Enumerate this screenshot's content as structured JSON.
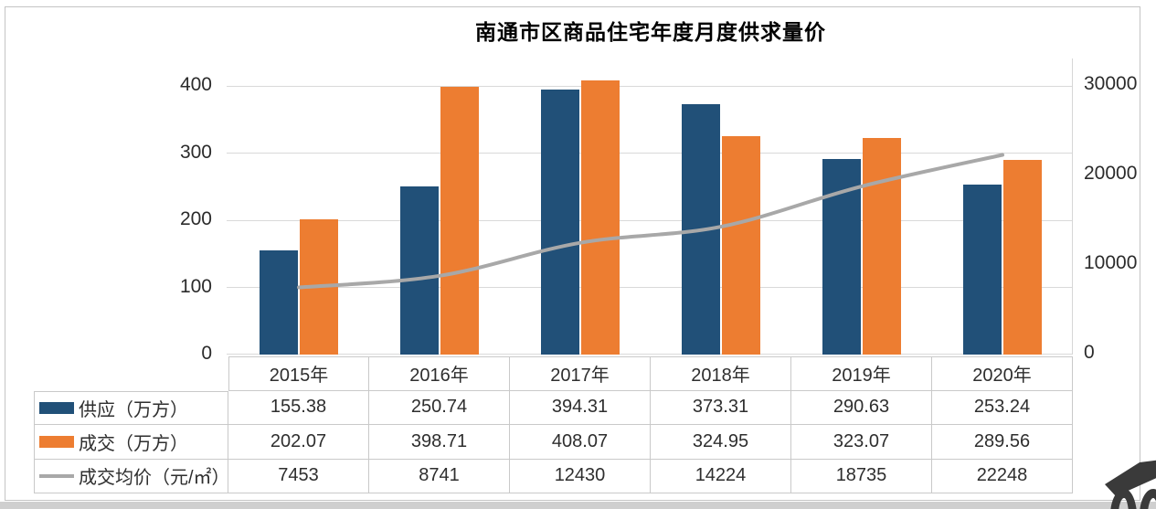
{
  "title": "南通市区商品住宅年度月度供求量价",
  "chart_data": {
    "type": "bar",
    "subtype": "grouped bars with smoothed line on secondary axis, data table below",
    "title": "南通市区商品住宅年度月度供求量价",
    "categories": [
      "2015年",
      "2016年",
      "2017年",
      "2018年",
      "2019年",
      "2020年"
    ],
    "series": [
      {
        "name": "供应（万方）",
        "type": "bar",
        "axis": "left",
        "color": "#215078",
        "values": [
          155.38,
          250.74,
          394.31,
          373.31,
          290.63,
          253.24
        ],
        "values_display": [
          "155.38",
          "250.74",
          "394.31",
          "373.31",
          "290.63",
          "253.24"
        ]
      },
      {
        "name": "成交（万方）",
        "type": "bar",
        "axis": "left",
        "color": "#ED7D31",
        "values": [
          202.07,
          398.71,
          408.07,
          324.95,
          323.07,
          289.56
        ],
        "values_display": [
          "202.07",
          "398.71",
          "408.07",
          "324.95",
          "323.07",
          "289.56"
        ]
      },
      {
        "name": "成交均价（元/㎡）",
        "type": "line",
        "axis": "right",
        "color": "#A8A8A8",
        "values": [
          7453,
          8741,
          12430,
          14224,
          18735,
          22248
        ],
        "values_display": [
          "7453",
          "8741",
          "12430",
          "14224",
          "18735",
          "22248"
        ]
      }
    ],
    "left_axis": {
      "ticks": [
        0,
        100,
        200,
        300,
        400
      ],
      "tick_labels": [
        "400",
        "300",
        "200",
        "100",
        "0"
      ],
      "range": [
        0,
        440
      ]
    },
    "right_axis": {
      "ticks": [
        0,
        10000,
        20000,
        30000
      ],
      "tick_labels": [
        "30000",
        "20000",
        "10000",
        "0"
      ],
      "range": [
        0,
        30000
      ]
    },
    "grid": true,
    "legend_position": "left column of data table"
  },
  "colors": {
    "grid": "#D9D9D9",
    "table_border": "#C9C9C9",
    "frame_border": "#C4C4C4",
    "bottom_strip": "#CFCFCF",
    "logo": "#3A3A3A"
  }
}
